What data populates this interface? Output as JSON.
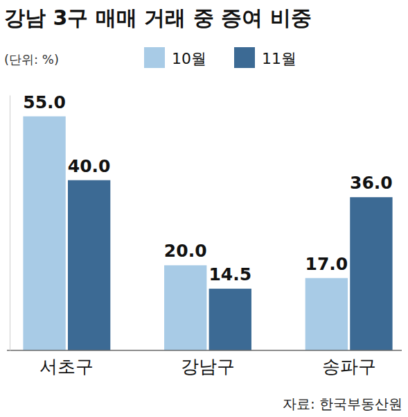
{
  "chart_data": {
    "type": "bar",
    "title": "강남 3구 매매 거래 중 증여 비중",
    "subtitle": "(단위: %)",
    "source": "자료: 한국부동산원",
    "categories": [
      "서초구",
      "강남구",
      "송파구"
    ],
    "series": [
      {
        "name": "10월",
        "color": "#a8cbe6",
        "values": [
          55,
          20,
          17
        ],
        "value_labels": [
          "55.0",
          "20.0",
          "17.0"
        ]
      },
      {
        "name": "11월",
        "color": "#3c6a94",
        "values": [
          40,
          14.5,
          36
        ],
        "value_labels": [
          "40.0",
          "14.5",
          "36.0"
        ]
      }
    ],
    "ylim": [
      0,
      60
    ],
    "tick_labels": "x",
    "data_labels": true,
    "legend": "top"
  }
}
